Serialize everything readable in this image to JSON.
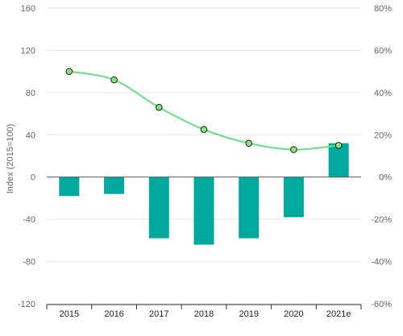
{
  "chart_data": {
    "type": "bar",
    "categories": [
      "2015",
      "2016",
      "2017",
      "2018",
      "2019",
      "2020",
      "2021e"
    ],
    "left_axis": {
      "label": "Index (2015=100)",
      "ylim": [
        -120,
        160
      ],
      "ticks": [
        -120,
        -80,
        -40,
        0,
        40,
        80,
        120,
        160
      ]
    },
    "right_axis": {
      "ylim": [
        -60,
        80
      ],
      "ticks": [
        "-60%",
        "-40%",
        "-20%",
        "0%",
        "20%",
        "40%",
        "60%",
        "80%"
      ],
      "tick_values": [
        -60,
        -40,
        -20,
        0,
        20,
        40,
        60,
        80
      ]
    },
    "series": [
      {
        "type": "bar",
        "axis": "right",
        "color": "#00a99d",
        "values": [
          -9,
          -8,
          -29,
          -32,
          -29,
          -19,
          16
        ]
      },
      {
        "type": "line",
        "axis": "left",
        "color": "#66e08a",
        "marker_color": "#8ee07a",
        "values": [
          100,
          92,
          66,
          45,
          32,
          26,
          30
        ]
      }
    ],
    "grid": true
  }
}
